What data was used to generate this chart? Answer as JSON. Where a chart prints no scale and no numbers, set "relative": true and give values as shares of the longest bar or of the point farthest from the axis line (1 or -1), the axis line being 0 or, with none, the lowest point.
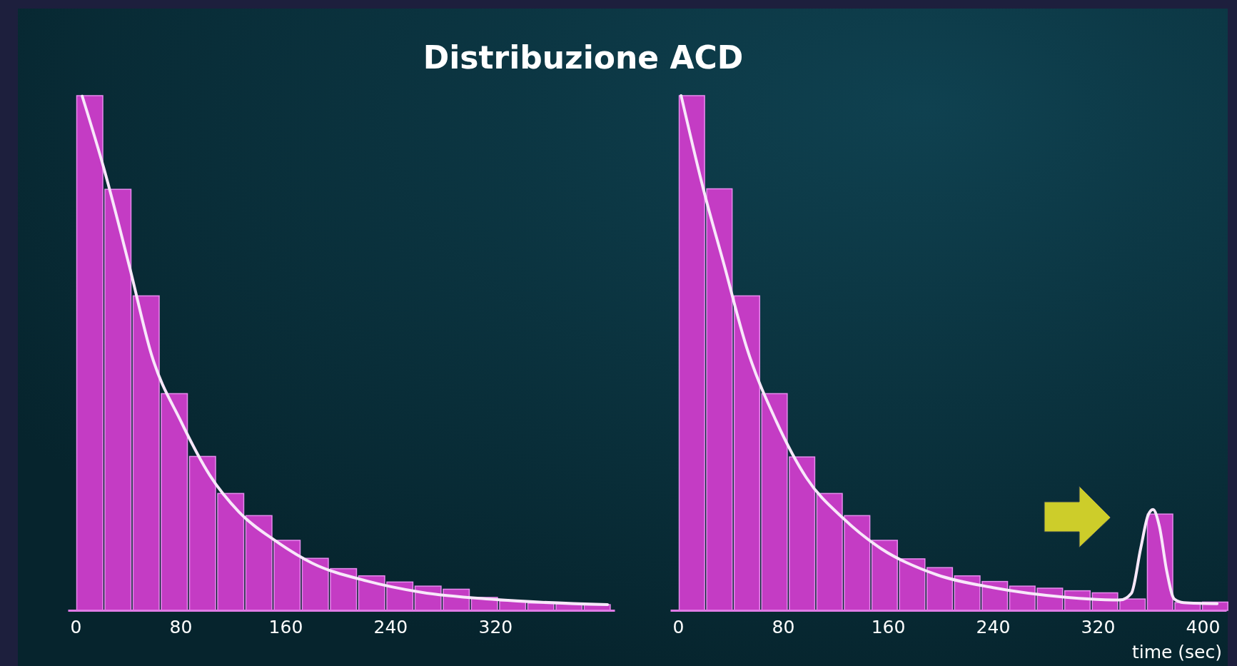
{
  "chart_data": [
    {
      "type": "histogram",
      "title": "Distribuzione ACD",
      "relative": true,
      "xlim": [
        -6,
        411
      ],
      "xticks": [
        0,
        80,
        160,
        240,
        320
      ],
      "bins": [
        0,
        21.5,
        43,
        64.5,
        86,
        107.5,
        129,
        150.5,
        172,
        193.5,
        215,
        236.5,
        258,
        279.5,
        301,
        322.5,
        344,
        365.5,
        387,
        408.5
      ],
      "series": [
        {
          "type": "histogram",
          "color": "#c43cc4",
          "values": [
            1,
            0.818,
            0.611,
            0.421,
            0.299,
            0.227,
            0.184,
            0.136,
            0.101,
            0.081,
            0.067,
            0.055,
            0.047,
            0.041,
            0.025,
            0.018,
            0.014,
            0.013,
            0.011
          ]
        },
        {
          "type": "line",
          "color": "#f8e8fa",
          "x": [
            5,
            21.7,
            41.2,
            57.9,
            80.1,
            102.4,
            124.6,
            152.4,
            180.2,
            222,
            263.7,
            319.3,
            405.6
          ],
          "values": [
            0.999,
            0.857,
            0.666,
            0.496,
            0.368,
            0.262,
            0.191,
            0.135,
            0.092,
            0.057,
            0.035,
            0.021,
            0.011
          ]
        }
      ]
    },
    {
      "type": "histogram",
      "xlabel": "time (sec)",
      "relative": true,
      "xlim": [
        -6,
        418
      ],
      "xticks": [
        0,
        80,
        160,
        240,
        320,
        400
      ],
      "bins": [
        0,
        21,
        42,
        63,
        84,
        105,
        126,
        147,
        168,
        189,
        210,
        231,
        252,
        273,
        294,
        315,
        336,
        357,
        378,
        399,
        420
      ],
      "series": [
        {
          "type": "histogram",
          "color": "#c43cc4",
          "values": [
            1,
            0.819,
            0.611,
            0.421,
            0.298,
            0.227,
            0.184,
            0.136,
            0.1,
            0.083,
            0.067,
            0.056,
            0.047,
            0.043,
            0.038,
            0.034,
            0.022,
            0.187,
            0.015,
            0.016
          ]
        },
        {
          "type": "line",
          "color": "#f8e8fa",
          "x": [
            2.3,
            19.4,
            35,
            52.1,
            74.9,
            97.7,
            126.2,
            154.7,
            197.4,
            240.2,
            297.2,
            337,
            345.6,
            352.7,
            358.4,
            362.1,
            367,
            372.6,
            378.3,
            385.5,
            411
          ],
          "values": [
            1,
            0.817,
            0.672,
            0.512,
            0.367,
            0.258,
            0.178,
            0.12,
            0.069,
            0.044,
            0.025,
            0.02,
            0.033,
            0.12,
            0.185,
            0.196,
            0.163,
            0.076,
            0.022,
            0.015,
            0.013
          ]
        }
      ]
    }
  ]
}
